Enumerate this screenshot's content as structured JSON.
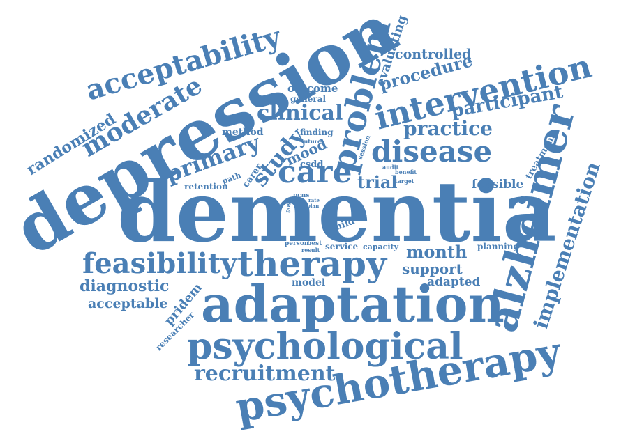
{
  "color": "#4a7fb5",
  "words": [
    "dementia",
    "depression",
    "adaptation",
    "psychotherapy",
    "alzheimer",
    "psychological",
    "therapy",
    "feasibility",
    "intervention",
    "problem",
    "disease",
    "acceptability",
    "moderate",
    "care",
    "primary",
    "study",
    "clinical",
    "implementation",
    "practice",
    "participant",
    "procedure",
    "recruitment",
    "randomized",
    "diagnostic",
    "acceptable",
    "trial",
    "month",
    "support",
    "adapted",
    "feasible",
    "pridem",
    "controlled",
    "evaluating",
    "mood",
    "outcome",
    "general",
    "method",
    "finding",
    "csdd",
    "carer",
    "path",
    "retention",
    "researcher",
    "model",
    "mild",
    "service",
    "capacity",
    "planning",
    "treatment",
    "person",
    "best",
    "result",
    "post",
    "pcns",
    "rate",
    "plan",
    "session",
    "future",
    "audit",
    "benefit",
    "target"
  ]
}
